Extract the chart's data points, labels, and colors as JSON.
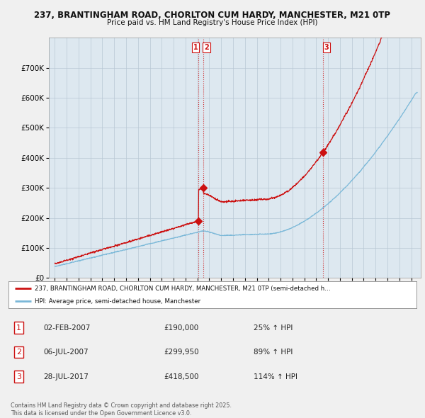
{
  "title_line1": "237, BRANTINGHAM ROAD, CHORLTON CUM HARDY, MANCHESTER, M21 0TP",
  "title_line2": "Price paid vs. HM Land Registry's House Price Index (HPI)",
  "background_color": "#f0f0f0",
  "plot_bg_color": "#dde8f0",
  "hpi_color": "#7ab8d8",
  "price_color": "#cc1111",
  "ylim": [
    0,
    800000
  ],
  "yticks": [
    0,
    100000,
    200000,
    300000,
    400000,
    500000,
    600000,
    700000
  ],
  "ytick_labels": [
    "£0",
    "£100K",
    "£200K",
    "£300K",
    "£400K",
    "£500K",
    "£600K",
    "£700K"
  ],
  "xlim_start": 1994.5,
  "xlim_end": 2025.8,
  "sale1_x": 2007.09,
  "sale1_y": 190000,
  "sale2_x": 2007.51,
  "sale2_y": 299950,
  "sale3_x": 2017.57,
  "sale3_y": 418500,
  "legend_line1": "237, BRANTINGHAM ROAD, CHORLTON CUM HARDY, MANCHESTER, M21 0TP (semi-detached h…",
  "legend_line2": "HPI: Average price, semi-detached house, Manchester",
  "table_entries": [
    {
      "num": "1",
      "date": "02-FEB-2007",
      "price": "£190,000",
      "hpi": "25% ↑ HPI"
    },
    {
      "num": "2",
      "date": "06-JUL-2007",
      "price": "£299,950",
      "hpi": "89% ↑ HPI"
    },
    {
      "num": "3",
      "date": "28-JUL-2017",
      "price": "£418,500",
      "hpi": "114% ↑ HPI"
    }
  ],
  "footer": "Contains HM Land Registry data © Crown copyright and database right 2025.\nThis data is licensed under the Open Government Licence v3.0.",
  "vline1_x": 2007.09,
  "vline2_x": 2007.51,
  "vline3_x": 2017.57
}
